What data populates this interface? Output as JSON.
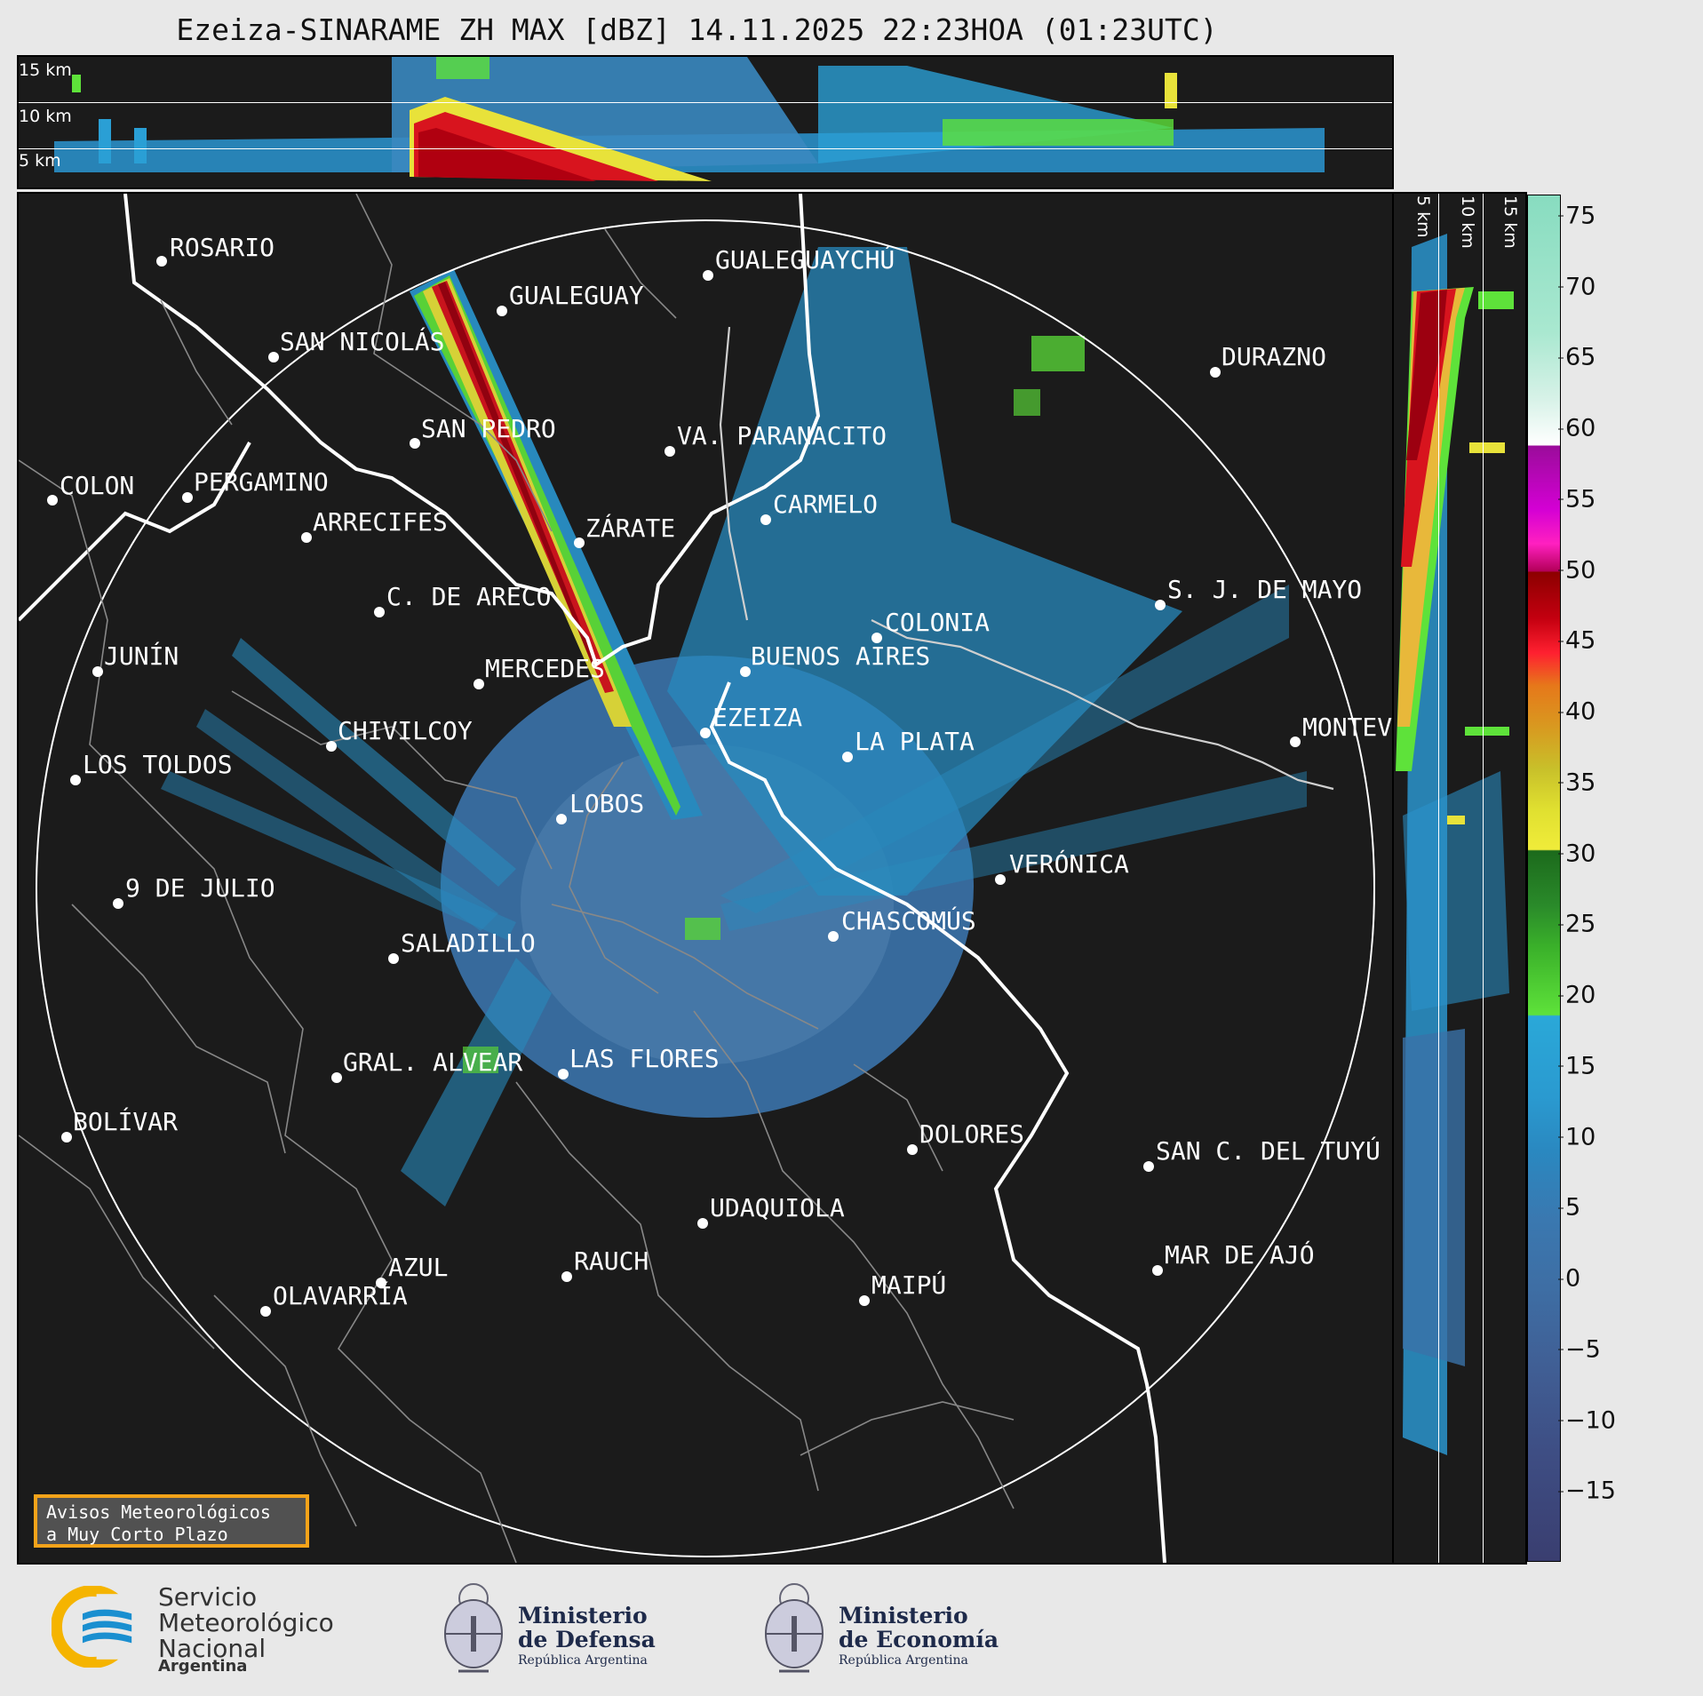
{
  "title": "Ezeiza-SINARAME ZH MAX [dBZ] 14.11.2025 22:23HOA (01:23UTC)",
  "top_panel": {
    "levels": [
      "15 km",
      "10 km",
      "5 km"
    ]
  },
  "right_panel": {
    "levels": [
      "5 km",
      "10 km",
      "15 km"
    ]
  },
  "colorbar": {
    "unit": "dBZ",
    "ticks": [
      "75",
      "70",
      "65",
      "60",
      "55",
      "50",
      "45",
      "40",
      "35",
      "30",
      "25",
      "20",
      "15",
      "10",
      "5",
      "0",
      "−5",
      "−10",
      "−15"
    ],
    "min": -20,
    "max": 76.5
  },
  "cities": [
    {
      "name": "ROSARIO"
    },
    {
      "name": "GUALEGUAYCHÚ"
    },
    {
      "name": "GUALEGUAY"
    },
    {
      "name": "SAN NICOLÁS"
    },
    {
      "name": "DURAZNO"
    },
    {
      "name": "SAN PEDRO"
    },
    {
      "name": "VA. PARANACITO"
    },
    {
      "name": "COLON"
    },
    {
      "name": "PERGAMINO"
    },
    {
      "name": "CARMELO"
    },
    {
      "name": "ARRECIFES"
    },
    {
      "name": "ZÁRATE"
    },
    {
      "name": "S. J. DE MAYO"
    },
    {
      "name": "C. DE ARECO"
    },
    {
      "name": "COLONIA"
    },
    {
      "name": "JUNÍN"
    },
    {
      "name": "BUENOS AIRES"
    },
    {
      "name": "MERCEDES"
    },
    {
      "name": "EZEIZA"
    },
    {
      "name": "MONTEVIDEO"
    },
    {
      "name": "CHIVILCOY"
    },
    {
      "name": "LA PLATA"
    },
    {
      "name": "LOS TOLDOS"
    },
    {
      "name": "LOBOS"
    },
    {
      "name": "VERÓNICA"
    },
    {
      "name": "9 DE JULIO"
    },
    {
      "name": "CHASCOMÚS"
    },
    {
      "name": "SALADILLO"
    },
    {
      "name": "GRAL. ALVEAR"
    },
    {
      "name": "LAS FLORES"
    },
    {
      "name": "BOLÍVAR"
    },
    {
      "name": "DOLORES"
    },
    {
      "name": "SAN C. DEL TUYÚ"
    },
    {
      "name": "UDAQUIOLA"
    },
    {
      "name": "MAR DE AJÓ"
    },
    {
      "name": "AZUL"
    },
    {
      "name": "RAUCH"
    },
    {
      "name": "OLAVARRÍA"
    },
    {
      "name": "MAIPÚ"
    }
  ],
  "notice": {
    "line1": "Avisos Meteorológicos",
    "line2": "a Muy Corto Plazo"
  },
  "footer": {
    "smn_line1": "Servicio",
    "smn_line2": "Meteorológico",
    "smn_line3": "Nacional",
    "smn_country": "Argentina",
    "defensa_line1": "Ministerio",
    "defensa_line2": "de Defensa",
    "defensa_sub": "República Argentina",
    "economia_line1": "Ministerio",
    "economia_line2": "de Economía",
    "economia_sub": "República Argentina"
  },
  "colors": {
    "background": "#1b1b1b",
    "accent_orange": "#f5a31a",
    "smn_blue": "#1a8fd0",
    "smn_yellow": "#f5b400"
  }
}
